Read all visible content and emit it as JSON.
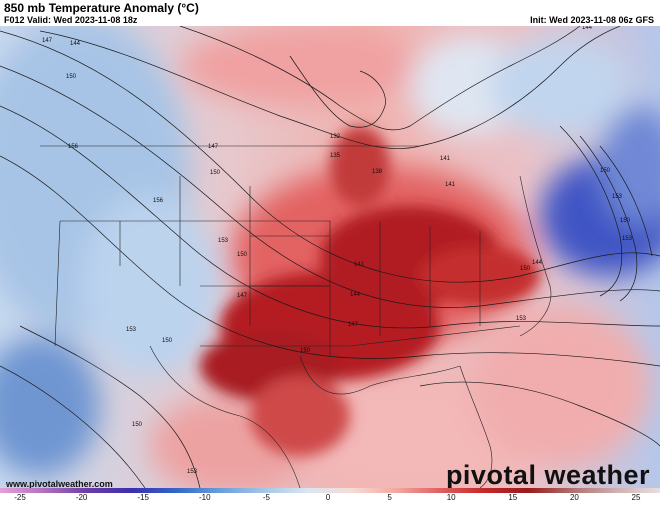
{
  "header": {
    "title": "850 mb Temperature Anomaly (°C)",
    "valid": "F012 Valid: Wed 2023-11-08 18z",
    "init": "Init: Wed 2023-11-08 06z GFS"
  },
  "footer": {
    "url": "www.pivotalweather.com",
    "brand": "pivotal weather"
  },
  "colorbar": {
    "ticks": [
      "-25",
      "-20",
      "-15",
      "-10",
      "-5",
      "0",
      "5",
      "10",
      "15",
      "20",
      "25"
    ],
    "colors": [
      "#e6a0d8",
      "#b070c0",
      "#6a3ca8",
      "#3a2fb0",
      "#3466c8",
      "#6a9edb",
      "#a6c6e6",
      "#dbe6f0",
      "#f6dcd6",
      "#f2a8a0",
      "#e06060",
      "#c42a2a",
      "#9a1a1a",
      "#b07070",
      "#d0b0b0",
      "#e8e0e0"
    ]
  },
  "contour_labels": [
    "147",
    "144",
    "150",
    "156",
    "147",
    "150",
    "156",
    "153",
    "150",
    "147",
    "150",
    "153",
    "150",
    "153",
    "153",
    "132",
    "135",
    "138",
    "141",
    "141",
    "144",
    "147",
    "150",
    "150",
    "153",
    "144",
    "144",
    "141",
    "150",
    "153",
    "150",
    "153"
  ],
  "colors": {
    "warm_core": "#a8151d",
    "warm": "#e05a5a",
    "mild_warm": "#f3b0ad",
    "cool": "#a9c7e8",
    "cold": "#4457c4",
    "contour": "#1a1a1a",
    "border": "#222222"
  }
}
